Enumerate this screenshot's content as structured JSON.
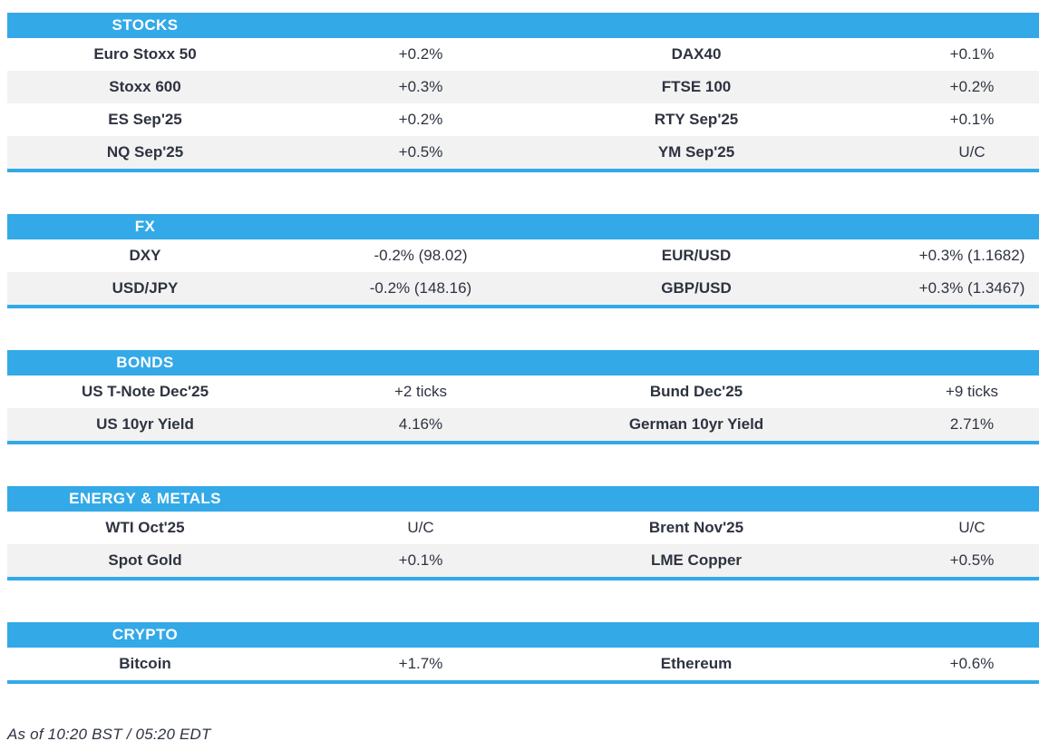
{
  "colors": {
    "accent": "#33A9E8",
    "alt_row": "#F2F2F2",
    "text": "#2E3340",
    "header_text": "#FFFFFF"
  },
  "sections": [
    {
      "title": "STOCKS",
      "rows": [
        {
          "name": "Euro Stoxx 50",
          "value": "+0.2%",
          "name2": "DAX40",
          "value2": "+0.1%"
        },
        {
          "name": "Stoxx 600",
          "value": "+0.3%",
          "name2": "FTSE 100",
          "value2": "+0.2%"
        },
        {
          "name": "ES Sep'25",
          "value": "+0.2%",
          "name2": "RTY Sep'25",
          "value2": "+0.1%"
        },
        {
          "name": "NQ Sep'25",
          "value": "+0.5%",
          "name2": "YM Sep'25",
          "value2": "U/C"
        }
      ]
    },
    {
      "title": "FX",
      "rows": [
        {
          "name": "DXY",
          "value": "-0.2% (98.02)",
          "name2": "EUR/USD",
          "value2": "+0.3% (1.1682)"
        },
        {
          "name": "USD/JPY",
          "value": "-0.2% (148.16)",
          "name2": "GBP/USD",
          "value2": "+0.3% (1.3467)"
        }
      ]
    },
    {
      "title": "BONDS",
      "rows": [
        {
          "name": "US T-Note Dec'25",
          "value": "+2 ticks",
          "name2": "Bund Dec'25",
          "value2": "+9 ticks"
        },
        {
          "name": "US 10yr Yield",
          "value": "4.16%",
          "name2": "German 10yr Yield",
          "value2": "2.71%"
        }
      ]
    },
    {
      "title": "ENERGY & METALS",
      "rows": [
        {
          "name": "WTI Oct'25",
          "value": "U/C",
          "name2": "Brent Nov'25",
          "value2": "U/C"
        },
        {
          "name": "Spot Gold",
          "value": "+0.1%",
          "name2": "LME Copper",
          "value2": "+0.5%"
        }
      ]
    },
    {
      "title": "CRYPTO",
      "rows": [
        {
          "name": "Bitcoin",
          "value": "+1.7%",
          "name2": "Ethereum",
          "value2": "+0.6%"
        }
      ]
    }
  ],
  "footer": {
    "as_of": "As of 10:20 BST / 05:20 EDT"
  }
}
